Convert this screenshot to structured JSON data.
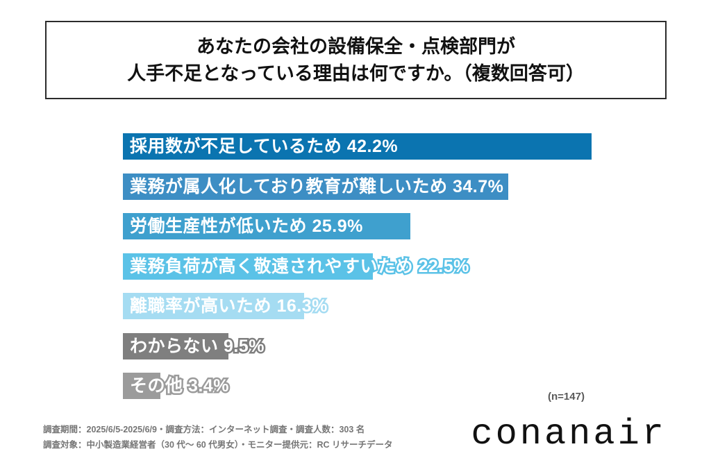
{
  "title": {
    "line1": "あなたの会社の設備保全・点検部門が",
    "line2": "人手不足となっている理由は何ですか。（複数回答可）"
  },
  "chart_data": {
    "type": "bar",
    "orientation": "horizontal",
    "unit": "%",
    "categories": [
      "採用数が不足しているため",
      "業務が属人化しており教育が難しいため",
      "労働生産性が低いため",
      "業務負荷が高く敬遠されやすいため",
      "離職率が高いため",
      "わからない",
      "その他"
    ],
    "values": [
      42.2,
      34.7,
      25.9,
      22.5,
      16.3,
      9.5,
      3.4
    ],
    "value_labels": [
      "42.2%",
      "34.7%",
      "25.9%",
      "22.5%",
      "16.3%",
      "9.5%",
      "3.4%"
    ],
    "bar_colors": [
      "#0b74b0",
      "#3d8ec4",
      "#3fa0ce",
      "#5bc2e7",
      "#a5dcf2",
      "#7f7f7f",
      "#9b9b9b"
    ],
    "label_color": "#ffffff",
    "sample_note": "(n=147)",
    "axis": "none",
    "legend": "none"
  },
  "footer": {
    "line1": "調査期間：2025/6/5-2025/6/9・調査方法：インターネット調査・調査人数：303 名",
    "line2": "調査対象：中小製造業経営者（30 代～ 60 代男女）・モニター提供元：RC リサーチデータ",
    "logo": "conanair"
  }
}
